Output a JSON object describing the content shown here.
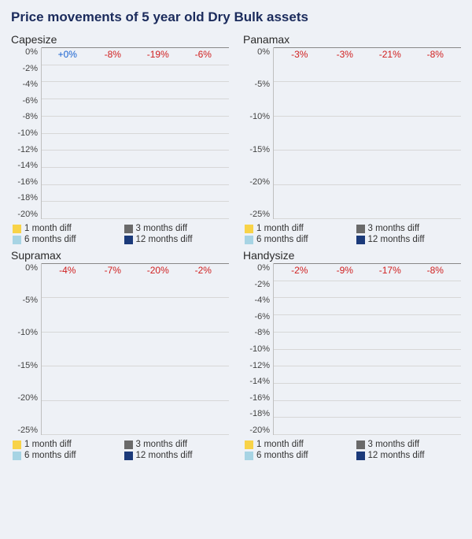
{
  "title": "Price movements of 5 year old Dry Bulk assets",
  "title_color": "#1b2b5c",
  "background_color": "#eef1f6",
  "grid_color": "#d7d7d7",
  "font_family": "Arial, Helvetica, sans-serif",
  "pos_label_color": "#1560d0",
  "neg_label_color": "#d02020",
  "legend": [
    {
      "label": "1 month diff",
      "color": "#f8d348"
    },
    {
      "label": "3 months diff",
      "color": "#6a6a6a"
    },
    {
      "label": "6 months diff",
      "color": "#a7d4e4"
    },
    {
      "label": "12 months diff",
      "color": "#1b3a7a"
    }
  ],
  "panels": [
    {
      "title": "Capesize",
      "ymin": -20,
      "ymax": 0,
      "ystep": 2,
      "bars": [
        {
          "value": 0,
          "label": "+0%",
          "color": "#f8d348",
          "label_color": "#1560d0"
        },
        {
          "value": -8,
          "label": "-8%",
          "color": "#6a6a6a",
          "label_color": "#d02020"
        },
        {
          "value": -19,
          "label": "-19%",
          "color": "#a7d4e4",
          "label_color": "#d02020"
        },
        {
          "value": -6,
          "label": "-6%",
          "color": "#1b3a7a",
          "label_color": "#d02020"
        }
      ]
    },
    {
      "title": "Panamax",
      "ymin": -25,
      "ymax": 0,
      "ystep": 5,
      "bars": [
        {
          "value": -3,
          "label": "-3%",
          "color": "#f8d348",
          "label_color": "#d02020"
        },
        {
          "value": -3,
          "label": "-3%",
          "color": "#6a6a6a",
          "label_color": "#d02020"
        },
        {
          "value": -21,
          "label": "-21%",
          "color": "#a7d4e4",
          "label_color": "#d02020"
        },
        {
          "value": -8,
          "label": "-8%",
          "color": "#1b3a7a",
          "label_color": "#d02020"
        }
      ]
    },
    {
      "title": "Supramax",
      "ymin": -25,
      "ymax": 0,
      "ystep": 5,
      "bars": [
        {
          "value": -4,
          "label": "-4%",
          "color": "#f8d348",
          "label_color": "#d02020"
        },
        {
          "value": -7,
          "label": "-7%",
          "color": "#6a6a6a",
          "label_color": "#d02020"
        },
        {
          "value": -20,
          "label": "-20%",
          "color": "#a7d4e4",
          "label_color": "#d02020"
        },
        {
          "value": -2,
          "label": "-2%",
          "color": "#1b3a7a",
          "label_color": "#d02020"
        }
      ]
    },
    {
      "title": "Handysize",
      "ymin": -20,
      "ymax": 0,
      "ystep": 2,
      "bars": [
        {
          "value": -2,
          "label": "-2%",
          "color": "#f8d348",
          "label_color": "#d02020"
        },
        {
          "value": -9,
          "label": "-9%",
          "color": "#6a6a6a",
          "label_color": "#d02020"
        },
        {
          "value": -17,
          "label": "-17%",
          "color": "#a7d4e4",
          "label_color": "#d02020"
        },
        {
          "value": -8,
          "label": "-8%",
          "color": "#1b3a7a",
          "label_color": "#d02020"
        }
      ]
    }
  ]
}
